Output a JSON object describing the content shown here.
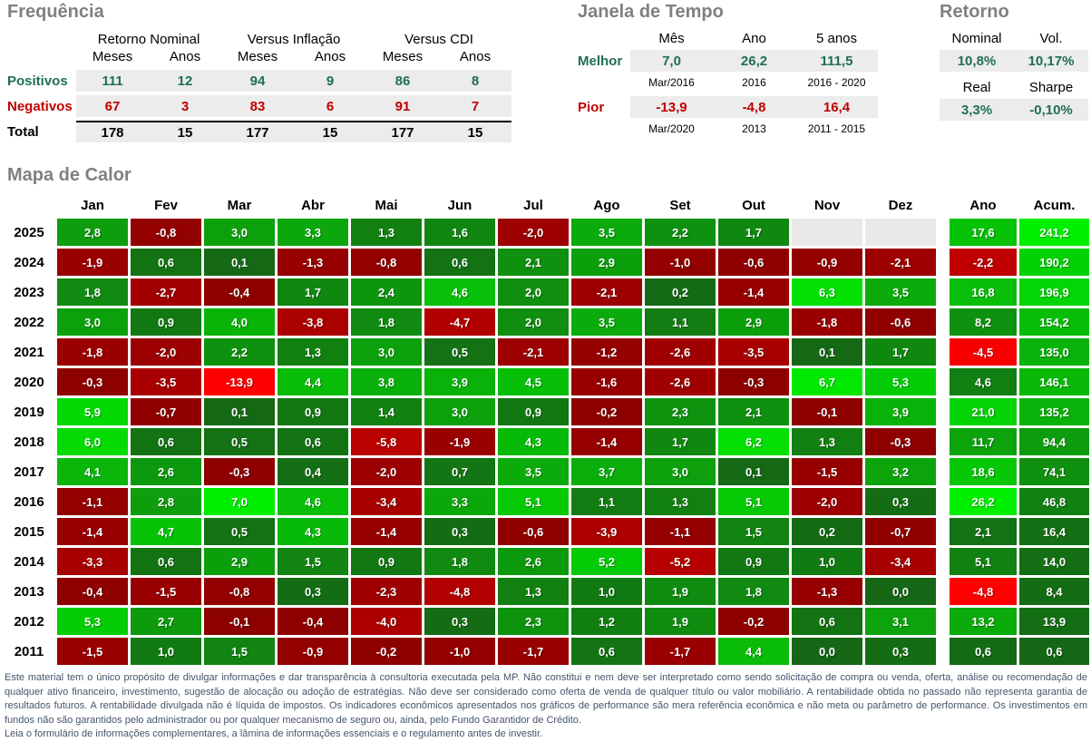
{
  "colors": {
    "title_gray": "#808080",
    "positive_text": "#1F6E55",
    "negative_text": "#C00000",
    "total_text": "#000000",
    "band_bg": "#ECECEC",
    "empty_cell": "#E9E9E9",
    "green_dark": "#156715",
    "green_bright": "#00EE00",
    "red_dark": "#8B0000",
    "red_bright": "#FF0000",
    "disclaimer_text": "#44546A"
  },
  "frequencia": {
    "title": "Frequência",
    "group_headers": [
      "Retorno Nominal",
      "Versus Inflação",
      "Versus CDI"
    ],
    "sub_headers": [
      "Meses",
      "Anos",
      "Meses",
      "Anos",
      "Meses",
      "Anos"
    ],
    "rows": [
      {
        "label": "Positivos",
        "tone": "positive",
        "values": [
          "111",
          "12",
          "94",
          "9",
          "86",
          "8"
        ]
      },
      {
        "label": "Negativos",
        "tone": "negative",
        "values": [
          "67",
          "3",
          "83",
          "6",
          "91",
          "7"
        ]
      },
      {
        "label": "Total",
        "tone": "total",
        "values": [
          "178",
          "15",
          "177",
          "15",
          "177",
          "15"
        ]
      }
    ]
  },
  "janela": {
    "title": "Janela de Tempo",
    "headers": [
      "Mês",
      "Ano",
      "5 anos"
    ],
    "rows": [
      {
        "label": "Melhor",
        "tone": "positive",
        "values": [
          "7,0",
          "26,2",
          "111,5"
        ],
        "periods": [
          "Mar/2016",
          "2016",
          "2016 - 2020"
        ]
      },
      {
        "label": "Pior",
        "tone": "negative",
        "values": [
          "-13,9",
          "-4,8",
          "16,4"
        ],
        "periods": [
          "Mar/2020",
          "2013",
          "2011 - 2015"
        ]
      }
    ]
  },
  "retorno": {
    "title": "Retorno",
    "rows": [
      {
        "headers": [
          "Nominal",
          "Vol."
        ],
        "values": [
          "10,8%",
          "10,17%"
        ]
      },
      {
        "headers": [
          "Real",
          "Sharpe"
        ],
        "values": [
          "3,3%",
          "-0,10%"
        ]
      }
    ]
  },
  "chart_data": {
    "type": "heatmap",
    "title": "Mapa de Calor",
    "unit": "percent return, comma decimal",
    "columns": [
      "Jan",
      "Fev",
      "Mar",
      "Abr",
      "Mai",
      "Jun",
      "Jul",
      "Ago",
      "Set",
      "Out",
      "Nov",
      "Dez"
    ],
    "summary_columns": [
      "Ano",
      "Acum."
    ],
    "legend_position": "none",
    "rows": [
      {
        "year": "2025",
        "months": [
          2.8,
          -0.8,
          3.0,
          3.3,
          1.3,
          1.6,
          -2.0,
          3.5,
          2.2,
          1.7,
          null,
          null
        ],
        "ano": 17.6,
        "acum": 241.2
      },
      {
        "year": "2024",
        "months": [
          -1.9,
          0.6,
          0.1,
          -1.3,
          -0.8,
          0.6,
          2.1,
          2.9,
          -1.0,
          -0.6,
          -0.9,
          -2.1
        ],
        "ano": -2.2,
        "acum": 190.2
      },
      {
        "year": "2023",
        "months": [
          1.8,
          -2.7,
          -0.4,
          1.7,
          2.4,
          4.6,
          2.0,
          -2.1,
          0.2,
          -1.4,
          6.3,
          3.5
        ],
        "ano": 16.8,
        "acum": 196.9
      },
      {
        "year": "2022",
        "months": [
          3.0,
          0.9,
          4.0,
          -3.8,
          1.8,
          -4.7,
          2.0,
          3.5,
          1.1,
          2.9,
          -1.8,
          -0.6
        ],
        "ano": 8.2,
        "acum": 154.2
      },
      {
        "year": "2021",
        "months": [
          -1.8,
          -2.0,
          2.2,
          1.3,
          3.0,
          0.5,
          -2.1,
          -1.2,
          -2.6,
          -3.5,
          0.1,
          1.7
        ],
        "ano": -4.5,
        "acum": 135.0
      },
      {
        "year": "2020",
        "months": [
          -0.3,
          -3.5,
          -13.9,
          4.4,
          3.8,
          3.9,
          4.5,
          -1.6,
          -2.6,
          -0.3,
          6.7,
          5.3
        ],
        "ano": 4.6,
        "acum": 146.1
      },
      {
        "year": "2019",
        "months": [
          5.9,
          -0.7,
          0.1,
          0.9,
          1.4,
          3.0,
          0.9,
          -0.2,
          2.3,
          2.1,
          -0.1,
          3.9
        ],
        "ano": 21.0,
        "acum": 135.2
      },
      {
        "year": "2018",
        "months": [
          6.0,
          0.6,
          0.5,
          0.6,
          -5.8,
          -1.9,
          4.3,
          -1.4,
          1.7,
          6.2,
          1.3,
          -0.3
        ],
        "ano": 11.7,
        "acum": 94.4
      },
      {
        "year": "2017",
        "months": [
          4.1,
          2.6,
          -0.3,
          0.4,
          -2.0,
          0.7,
          3.5,
          3.7,
          3.0,
          0.1,
          -1.5,
          3.2
        ],
        "ano": 18.6,
        "acum": 74.1
      },
      {
        "year": "2016",
        "months": [
          -1.1,
          2.8,
          7.0,
          4.6,
          -3.4,
          3.3,
          5.1,
          1.1,
          1.3,
          5.1,
          -2.0,
          0.3
        ],
        "ano": 26.2,
        "acum": 46.8
      },
      {
        "year": "2015",
        "months": [
          -1.4,
          4.7,
          0.5,
          4.3,
          -1.4,
          0.3,
          -0.6,
          -3.9,
          -1.1,
          1.5,
          0.2,
          -0.7
        ],
        "ano": 2.1,
        "acum": 16.4
      },
      {
        "year": "2014",
        "months": [
          -3.3,
          0.6,
          2.9,
          1.5,
          0.9,
          1.8,
          2.6,
          5.2,
          -5.2,
          0.9,
          1.0,
          -3.4
        ],
        "ano": 5.1,
        "acum": 14.0
      },
      {
        "year": "2013",
        "months": [
          -0.4,
          -1.5,
          -0.8,
          0.3,
          -2.3,
          -4.8,
          1.3,
          1.0,
          1.9,
          1.8,
          -1.3,
          0.0
        ],
        "ano": -4.8,
        "acum": 8.4
      },
      {
        "year": "2012",
        "months": [
          5.3,
          2.7,
          -0.1,
          -0.4,
          -4.0,
          0.3,
          2.3,
          1.2,
          1.9,
          -0.2,
          0.6,
          3.1
        ],
        "ano": 13.2,
        "acum": 13.9
      },
      {
        "year": "2011",
        "months": [
          -1.5,
          1.0,
          1.5,
          -0.9,
          -0.2,
          -1.0,
          -1.7,
          0.6,
          -1.7,
          4.4,
          0.0,
          0.3
        ],
        "ano": 0.6,
        "acum": 0.6
      }
    ]
  },
  "disclaimer": {
    "body": "Este material tem o único propósito de divulgar informações e dar transparência à consultoria executada pela MP. Não constitui e nem deve ser interpretado como sendo solicitação de compra ou venda, oferta, análise ou recomendação de qualquer ativo financeiro, investimento, sugestão de alocação ou adoção de estratégias. Não deve ser considerado como oferta de venda de qualquer título ou valor mobiliário. A rentabilidade obtida no passado não representa garantia de resultados futuros. A rentabilidade divulgada não é líquida de impostos. Os indicadores econômicos apresentados nos gráficos de performance são mera referência econômica e não meta ou parâmetro de performance. Os investimentos em fundos não são garantidos pelo administrador ou por qualquer mecanismo de seguro ou, ainda, pelo Fundo Garantidor de Crédito.",
    "final": "Leia o formulário de informações complementares, a lâmina de informações essenciais e o regulamento antes de investir."
  }
}
